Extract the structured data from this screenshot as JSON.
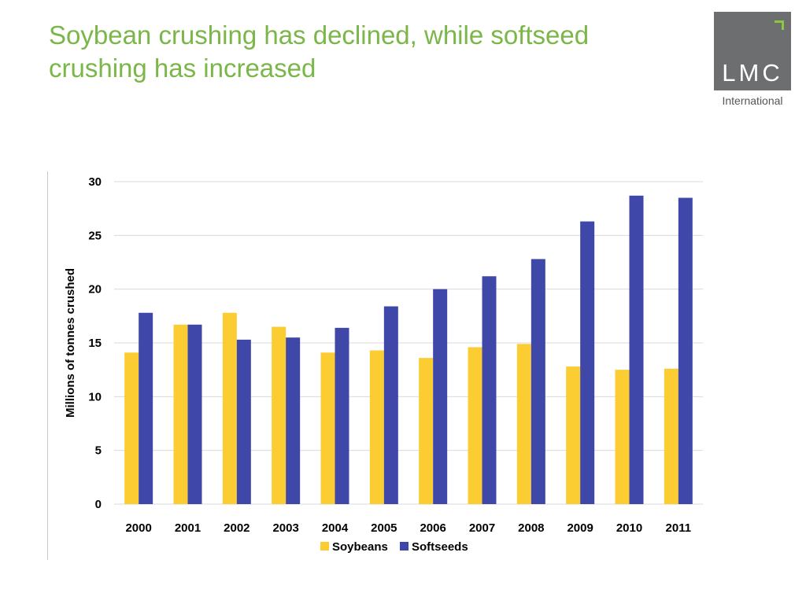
{
  "slide": {
    "title": "Soybean crushing has declined, while softseed crushing has increased"
  },
  "logo": {
    "letters": "LMC",
    "subtitle": "International",
    "box_color": "#6d6e70",
    "accent_color": "#8dc63f"
  },
  "colors": {
    "title": "#7ab648",
    "soybeans": "#fccc33",
    "softseeds": "#3f48a8",
    "grid": "#d9d9d9"
  },
  "chart_data": {
    "type": "bar",
    "title": "",
    "xlabel": "",
    "ylabel": "Millions of tonnes crushed",
    "ylim": [
      0,
      30
    ],
    "yticks": [
      0,
      5,
      10,
      15,
      20,
      25,
      30
    ],
    "grid": true,
    "legend_position": "bottom",
    "categories": [
      "2000",
      "2001",
      "2002",
      "2003",
      "2004",
      "2005",
      "2006",
      "2007",
      "2008",
      "2009",
      "2010",
      "2011"
    ],
    "series": [
      {
        "name": "Soybeans",
        "color": "#fccc33",
        "values": [
          14.1,
          16.7,
          17.8,
          16.5,
          14.1,
          14.3,
          13.6,
          14.6,
          14.9,
          12.8,
          12.5,
          12.6
        ]
      },
      {
        "name": "Softseeds",
        "color": "#3f48a8",
        "values": [
          17.8,
          16.7,
          15.3,
          15.5,
          16.4,
          18.4,
          20.0,
          21.2,
          22.8,
          26.3,
          28.7,
          28.5
        ]
      }
    ]
  }
}
